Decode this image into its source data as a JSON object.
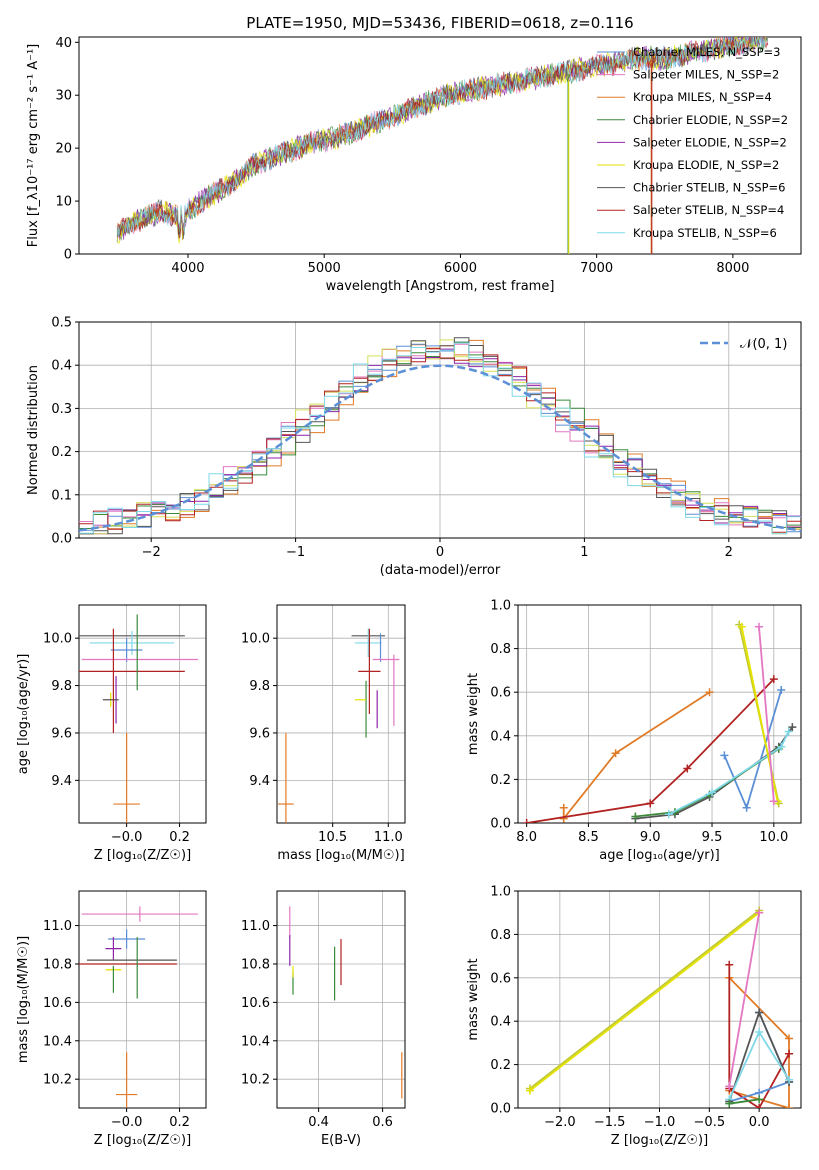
{
  "chart_data": [
    {
      "type": "line",
      "title": "PLATE=1950, MJD=53436, FIBERID=0618, z=0.116",
      "xlabel": "wavelength [Angstrom, rest frame]",
      "ylabel": "Flux [f_λ10⁻¹⁷ erg cm⁻² s⁻¹ A⁻¹]",
      "xlim": [
        3200,
        8500
      ],
      "ylim": [
        0,
        41
      ],
      "xticks": [
        4000,
        5000,
        6000,
        7000,
        8000
      ],
      "yticks": [
        0,
        10,
        20,
        30,
        40
      ],
      "legend_position": "upper-right",
      "legend": [
        "Chabrier MILES, N_SSP=3",
        "Salpeter MILES, N_SSP=2",
        "Kroupa MILES, N_SSP=4",
        "Chabrier ELODIE, N_SSP=2",
        "Salpeter ELODIE, N_SSP=2",
        "Kroupa ELODIE, N_SSP=2",
        "Chabrier STELIB, N_SSP=6",
        "Salpeter STELIB, N_SSP=4",
        "Kroupa STELIB, N_SSP=6"
      ],
      "series_colors": [
        "#5b8fd6",
        "#e377c2",
        "#e07b28",
        "#3a8a3a",
        "#8e24aa",
        "#e6e200",
        "#555555",
        "#b22222",
        "#7fd8e8"
      ],
      "continuum_points": [
        [
          3480,
          4
        ],
        [
          3600,
          6
        ],
        [
          3800,
          8
        ],
        [
          3950,
          7
        ],
        [
          4100,
          10
        ],
        [
          4300,
          13
        ],
        [
          4500,
          17
        ],
        [
          4700,
          19
        ],
        [
          4900,
          21
        ],
        [
          5100,
          22
        ],
        [
          5300,
          24
        ],
        [
          5500,
          26
        ],
        [
          5700,
          28
        ],
        [
          5900,
          30
        ],
        [
          6100,
          31
        ],
        [
          6300,
          32
        ],
        [
          6500,
          33
        ],
        [
          6700,
          34
        ],
        [
          6900,
          35
        ],
        [
          7100,
          36
        ],
        [
          7300,
          37
        ],
        [
          7500,
          37
        ],
        [
          7700,
          38
        ],
        [
          7900,
          39
        ],
        [
          8100,
          40
        ],
        [
          8250,
          41
        ]
      ]
    },
    {
      "type": "line",
      "xlabel": "(data-model)/error",
      "ylabel": "Normed distribution",
      "xlim": [
        -2.5,
        2.5
      ],
      "ylim": [
        0,
        0.5
      ],
      "xticks": [
        -2,
        -1,
        0,
        1,
        2
      ],
      "yticks": [
        0.0,
        0.1,
        0.2,
        0.3,
        0.4,
        0.5
      ],
      "legend_position": "upper-right",
      "legend": [
        "𝒩(0, 1)"
      ],
      "gaussian_color": "#5b8fd6",
      "series_colors": [
        "#e07b28",
        "#5b8fd6",
        "#e377c2",
        "#3a8a3a",
        "#8e24aa",
        "#d4e157",
        "#555555",
        "#b22222",
        "#7fd8e8"
      ]
    },
    {
      "type": "scatter",
      "xlabel": "Z [log₁₀(Z/Z☉)]",
      "ylabel": "age  [log₁₀(age/yr)]",
      "xlim": [
        -0.18,
        0.3
      ],
      "ylim": [
        9.22,
        10.14
      ],
      "xticks": [
        -0.0,
        0.2
      ],
      "xtick_labels": [
        "−0.0",
        "0.2"
      ],
      "yticks": [
        9.4,
        9.6,
        9.8,
        10.0
      ],
      "points": [
        {
          "c": "#555555",
          "x": 0.02,
          "xerr": 0.2,
          "y": 10.01,
          "yerr": 0.0
        },
        {
          "c": "#7fd8e8",
          "x": 0.02,
          "xerr": 0.16,
          "y": 9.98,
          "yerr": 0.05
        },
        {
          "c": "#5b8fd6",
          "x": 0.0,
          "xerr": 0.06,
          "y": 9.95,
          "yerr": 0.05
        },
        {
          "c": "#e377c2",
          "x": 0.05,
          "xerr": 0.22,
          "y": 9.91,
          "yerr": 0.0
        },
        {
          "c": "#b22222",
          "x": 0.02,
          "xerr": 0.2,
          "y": 9.86,
          "yerr": 0.0
        },
        {
          "c": "#3a8a3a",
          "x": 0.04,
          "xerr": 0.0,
          "y": 9.94,
          "yerr": 0.16
        },
        {
          "c": "#e6e200",
          "x": -0.06,
          "xerr": 0.0,
          "y": 9.74,
          "yerr": 0.03
        },
        {
          "c": "#8e24aa",
          "x": -0.04,
          "xerr": 0.0,
          "y": 9.74,
          "yerr": 0.1
        },
        {
          "c": "#555555",
          "x": -0.06,
          "xerr": 0.03,
          "y": 9.74,
          "yerr": 0.0
        },
        {
          "c": "#b22222",
          "x": -0.05,
          "xerr": 0.0,
          "y": 9.82,
          "yerr": 0.22
        },
        {
          "c": "#e07b28",
          "x": -0.0,
          "xerr": 0.05,
          "y": 9.3,
          "yerr": 0.3
        }
      ]
    },
    {
      "type": "scatter",
      "xlabel": "mass [log₁₀(M/M☉)]",
      "xlim": [
        10.0,
        11.15
      ],
      "ylim": [
        9.22,
        10.14
      ],
      "xticks": [
        10.5,
        11.0
      ],
      "yticks": [
        9.4,
        9.6,
        9.8,
        10.0
      ],
      "points": [
        {
          "c": "#555555",
          "x": 10.82,
          "xerr": 0.15,
          "y": 10.01,
          "yerr": 0.0
        },
        {
          "c": "#7fd8e8",
          "x": 10.82,
          "xerr": 0.12,
          "y": 9.98,
          "yerr": 0.06
        },
        {
          "c": "#5b8fd6",
          "x": 10.93,
          "xerr": 0.0,
          "y": 9.96,
          "yerr": 0.06
        },
        {
          "c": "#e377c2",
          "x": 10.98,
          "xerr": 0.12,
          "y": 9.91,
          "yerr": 0.0
        },
        {
          "c": "#e377c2",
          "x": 11.05,
          "xerr": 0.0,
          "y": 9.78,
          "yerr": 0.15
        },
        {
          "c": "#b22222",
          "x": 10.83,
          "xerr": 0.1,
          "y": 9.86,
          "yerr": 0.18
        },
        {
          "c": "#3a8a3a",
          "x": 10.8,
          "xerr": 0.0,
          "y": 9.7,
          "yerr": 0.12
        },
        {
          "c": "#8e24aa",
          "x": 10.9,
          "xerr": 0.0,
          "y": 9.7,
          "yerr": 0.08
        },
        {
          "c": "#e6e200",
          "x": 10.75,
          "xerr": 0.05,
          "y": 9.74,
          "yerr": 0.0
        },
        {
          "c": "#e07b28",
          "x": 10.08,
          "xerr": 0.07,
          "y": 9.3,
          "yerr": 0.3
        }
      ]
    },
    {
      "type": "line",
      "xlabel": "age  [log₁₀(age/yr)]",
      "ylabel": "mass weight",
      "xlim": [
        7.93,
        10.22
      ],
      "ylim": [
        0,
        1.0
      ],
      "xticks": [
        8.0,
        8.5,
        9.0,
        9.5,
        10.0
      ],
      "yticks": [
        0.0,
        0.2,
        0.4,
        0.6,
        0.8,
        1.0
      ],
      "series": [
        {
          "c": "#e07b28",
          "points": [
            [
              8.3,
              0.07
            ],
            [
              8.3,
              0.02
            ],
            [
              8.72,
              0.32
            ],
            [
              9.48,
              0.6
            ]
          ]
        },
        {
          "c": "#b22222",
          "points": [
            [
              8.0,
              0.0
            ],
            [
              9.0,
              0.09
            ],
            [
              9.3,
              0.25
            ],
            [
              10.0,
              0.66
            ]
          ]
        },
        {
          "c": "#5b8fd6",
          "points": [
            [
              9.6,
              0.31
            ],
            [
              9.78,
              0.07
            ],
            [
              10.06,
              0.61
            ]
          ]
        },
        {
          "c": "#555555",
          "points": [
            [
              8.88,
              0.02
            ],
            [
              9.2,
              0.04
            ],
            [
              9.48,
              0.12
            ],
            [
              10.04,
              0.35
            ],
            [
              10.15,
              0.44
            ]
          ]
        },
        {
          "c": "#3a8a3a",
          "points": [
            [
              8.88,
              0.03
            ],
            [
              9.2,
              0.05
            ],
            [
              9.48,
              0.13
            ],
            [
              10.04,
              0.34
            ]
          ]
        },
        {
          "c": "#7fd8e8",
          "points": [
            [
              9.15,
              0.04
            ],
            [
              9.5,
              0.14
            ],
            [
              10.06,
              0.35
            ],
            [
              10.12,
              0.42
            ]
          ]
        },
        {
          "c": "#c0ca33",
          "points": [
            [
              9.72,
              0.91
            ],
            [
              10.04,
              0.09
            ]
          ]
        },
        {
          "c": "#e6e200",
          "points": [
            [
              9.74,
              0.9
            ],
            [
              10.03,
              0.1
            ]
          ]
        },
        {
          "c": "#e377c2",
          "points": [
            [
              9.88,
              0.9
            ],
            [
              10.0,
              0.1
            ]
          ]
        }
      ]
    },
    {
      "type": "scatter",
      "xlabel": "Z [log₁₀(Z/Z☉)]",
      "ylabel": "mass [log₁₀(M/M☉)]",
      "xlim": [
        -0.18,
        0.3
      ],
      "ylim": [
        10.05,
        11.18
      ],
      "xticks": [
        0.0,
        0.2
      ],
      "xtick_labels": [
        "−0.0",
        "0.2"
      ],
      "yticks": [
        10.2,
        10.4,
        10.6,
        10.8,
        11.0
      ],
      "points": [
        {
          "c": "#e377c2",
          "x": 0.05,
          "xerr": 0.22,
          "y": 11.06,
          "yerr": 0.04
        },
        {
          "c": "#5b8fd6",
          "x": 0.0,
          "xerr": 0.07,
          "y": 10.93,
          "yerr": 0.05
        },
        {
          "c": "#8e24aa",
          "x": -0.05,
          "xerr": 0.03,
          "y": 10.88,
          "yerr": 0.06
        },
        {
          "c": "#555555",
          "x": 0.02,
          "xerr": 0.17,
          "y": 10.82,
          "yerr": 0.0
        },
        {
          "c": "#b22222",
          "x": 0.0,
          "xerr": 0.19,
          "y": 10.8,
          "yerr": 0.0
        },
        {
          "c": "#3a8a3a",
          "x": 0.04,
          "xerr": 0.0,
          "y": 10.78,
          "yerr": 0.16
        },
        {
          "c": "#e6e200",
          "x": -0.05,
          "xerr": 0.03,
          "y": 10.77,
          "yerr": 0.0
        },
        {
          "c": "#3a8a3a",
          "x": -0.05,
          "xerr": 0.0,
          "y": 10.72,
          "yerr": 0.07
        },
        {
          "c": "#e07b28",
          "x": 0.0,
          "xerr": 0.04,
          "y": 10.12,
          "yerr": 0.22
        }
      ]
    },
    {
      "type": "scatter",
      "xlabel": "E(B-V)",
      "xlim": [
        0.27,
        0.67
      ],
      "ylim": [
        10.05,
        11.18
      ],
      "xticks": [
        0.4,
        0.6
      ],
      "yticks": [
        10.2,
        10.4,
        10.6,
        10.8,
        11.0
      ],
      "points": [
        {
          "c": "#e377c2",
          "x": 0.31,
          "xerr": 0.0,
          "y": 11.02,
          "yerr": 0.08
        },
        {
          "c": "#8e24aa",
          "x": 0.31,
          "xerr": 0.0,
          "y": 10.87,
          "yerr": 0.08
        },
        {
          "c": "#3a8a3a",
          "x": 0.32,
          "xerr": 0.0,
          "y": 10.7,
          "yerr": 0.06
        },
        {
          "c": "#e6e200",
          "x": 0.32,
          "xerr": 0.0,
          "y": 10.76,
          "yerr": 0.03
        },
        {
          "c": "#3a8a3a",
          "x": 0.45,
          "xerr": 0.0,
          "y": 10.75,
          "yerr": 0.14
        },
        {
          "c": "#b22222",
          "x": 0.47,
          "xerr": 0.0,
          "y": 10.81,
          "yerr": 0.12
        },
        {
          "c": "#e07b28",
          "x": 0.66,
          "xerr": 0.0,
          "y": 10.22,
          "yerr": 0.12
        }
      ]
    },
    {
      "type": "line",
      "xlabel": "Z [log₁₀(Z/Z☉)]",
      "ylabel": "mass weight",
      "xlim": [
        -2.42,
        0.42
      ],
      "ylim": [
        0,
        1.0
      ],
      "xticks": [
        -2.0,
        -1.5,
        -1.0,
        -0.5,
        0.0
      ],
      "yticks": [
        0.0,
        0.2,
        0.4,
        0.6,
        0.8,
        1.0
      ],
      "series": [
        {
          "c": "#c0ca33",
          "points": [
            [
              -2.3,
              0.09
            ],
            [
              0.0,
              0.91
            ]
          ]
        },
        {
          "c": "#e6e200",
          "points": [
            [
              -2.3,
              0.08
            ],
            [
              0.0,
              0.9
            ]
          ]
        },
        {
          "c": "#e07b28",
          "points": [
            [
              -0.3,
              0.6
            ],
            [
              0.3,
              0.32
            ],
            [
              0.3,
              0.0
            ],
            [
              -0.3,
              0.08
            ]
          ]
        },
        {
          "c": "#b22222",
          "points": [
            [
              -0.3,
              0.66
            ],
            [
              -0.3,
              0.09
            ],
            [
              0.0,
              0.0
            ],
            [
              0.3,
              0.25
            ]
          ]
        },
        {
          "c": "#5b8fd6",
          "points": [
            [
              -0.3,
              0.03
            ],
            [
              0.0,
              0.07
            ],
            [
              0.3,
              0.12
            ],
            [
              0.0,
              0.44
            ]
          ]
        },
        {
          "c": "#555555",
          "points": [
            [
              -0.3,
              0.03
            ],
            [
              0.0,
              0.44
            ],
            [
              0.3,
              0.12
            ]
          ]
        },
        {
          "c": "#7fd8e8",
          "points": [
            [
              -0.3,
              0.04
            ],
            [
              0.0,
              0.35
            ],
            [
              0.3,
              0.13
            ]
          ]
        },
        {
          "c": "#e377c2",
          "points": [
            [
              -0.3,
              0.1
            ],
            [
              0.0,
              0.9
            ]
          ]
        },
        {
          "c": "#3a8a3a",
          "points": [
            [
              -0.3,
              0.02
            ],
            [
              0.0,
              0.04
            ]
          ]
        }
      ]
    }
  ]
}
